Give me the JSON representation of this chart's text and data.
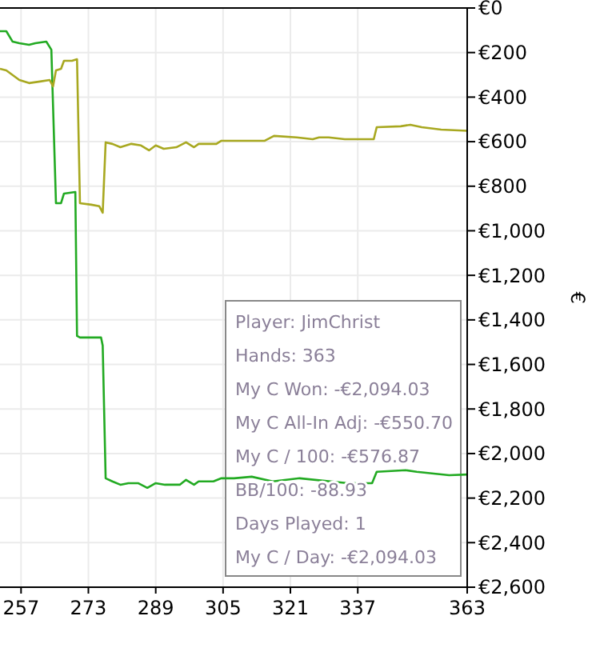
{
  "chart_data": {
    "type": "line",
    "ylabel": "€",
    "xlim": [
      252,
      363
    ],
    "xticks": [
      257,
      273,
      289,
      305,
      321,
      337,
      363
    ],
    "ylim": [
      -2600,
      0
    ],
    "yticks": [
      {
        "value": 0,
        "label": "€0"
      },
      {
        "value": -200,
        "label": "€200"
      },
      {
        "value": -400,
        "label": "€400"
      },
      {
        "value": -600,
        "label": "€600"
      },
      {
        "value": -800,
        "label": "€800"
      },
      {
        "value": -1000,
        "label": "€1,000"
      },
      {
        "value": -1200,
        "label": "€1,200"
      },
      {
        "value": -1400,
        "label": "€1,400"
      },
      {
        "value": -1600,
        "label": "€1,600"
      },
      {
        "value": -1800,
        "label": "€1,800"
      },
      {
        "value": -2000,
        "label": "€2,000"
      },
      {
        "value": -2200,
        "label": "€2,200"
      },
      {
        "value": -2400,
        "label": "€2,400"
      },
      {
        "value": -2600,
        "label": "€2,600"
      }
    ],
    "grid": true,
    "marker": "none",
    "line_style": "solid",
    "series": [
      {
        "color": "#22aa22",
        "x": [
          252,
          253.5,
          255,
          256.6,
          258.9,
          260.4,
          263,
          264.2,
          265.3,
          266.5,
          267.2,
          269.9,
          270.3,
          271,
          274.1,
          276,
          276.4,
          277.1,
          278.7,
          280.6,
          282.5,
          284.8,
          287,
          289,
          291.2,
          294.7,
          296.2,
          298.1,
          299.2,
          302.7,
          304.6,
          307.6,
          311.8,
          316.8,
          323.2,
          334.7,
          340.4,
          341.5,
          348.4,
          351,
          358.7,
          363
        ],
        "values": [
          -104,
          -104,
          -151,
          -158,
          -165,
          -158,
          -151,
          -187,
          -876,
          -876,
          -833,
          -826,
          -1472,
          -1479,
          -1479,
          -1479,
          -1515,
          -2111,
          -2125,
          -2140,
          -2133,
          -2133,
          -2154,
          -2133,
          -2140,
          -2140,
          -2118,
          -2140,
          -2125,
          -2125,
          -2111,
          -2111,
          -2104,
          -2125,
          -2111,
          -2133,
          -2133,
          -2082,
          -2075,
          -2082,
          -2097,
          -2094
        ]
      },
      {
        "color": "#a8a820",
        "x": [
          252,
          253.5,
          256.6,
          258.9,
          261.5,
          263.8,
          264.6,
          265.3,
          266.5,
          267.2,
          269.1,
          270.3,
          271,
          273.7,
          275.6,
          276.4,
          277.1,
          278.7,
          280.6,
          283.2,
          285.5,
          287.4,
          289,
          290.9,
          293.9,
          296.2,
          298.1,
          299.2,
          303.4,
          304.6,
          314.9,
          317.1,
          322.5,
          326.3,
          327.8,
          330.1,
          333.9,
          340.8,
          341.5,
          347.2,
          349.5,
          352.2,
          356.8,
          363
        ],
        "values": [
          -273,
          -280,
          -323,
          -337,
          -330,
          -323,
          -352,
          -280,
          -273,
          -237,
          -237,
          -230,
          -876,
          -883,
          -890,
          -919,
          -603,
          -610,
          -625,
          -610,
          -617,
          -639,
          -617,
          -632,
          -625,
          -603,
          -625,
          -610,
          -610,
          -596,
          -596,
          -574,
          -581,
          -589,
          -581,
          -581,
          -589,
          -589,
          -535,
          -531,
          -524,
          -535,
          -546,
          -551
        ]
      }
    ],
    "annotations": [
      "Player: JimChrist",
      "Hands: 363",
      "My C Won: -€2,094.03",
      "My C All-In Adj: -€550.70",
      "My C / 100: -€576.87",
      "BB/100: -88.93",
      "Days Played: 1",
      "My C / Day: -€2,094.03"
    ]
  }
}
